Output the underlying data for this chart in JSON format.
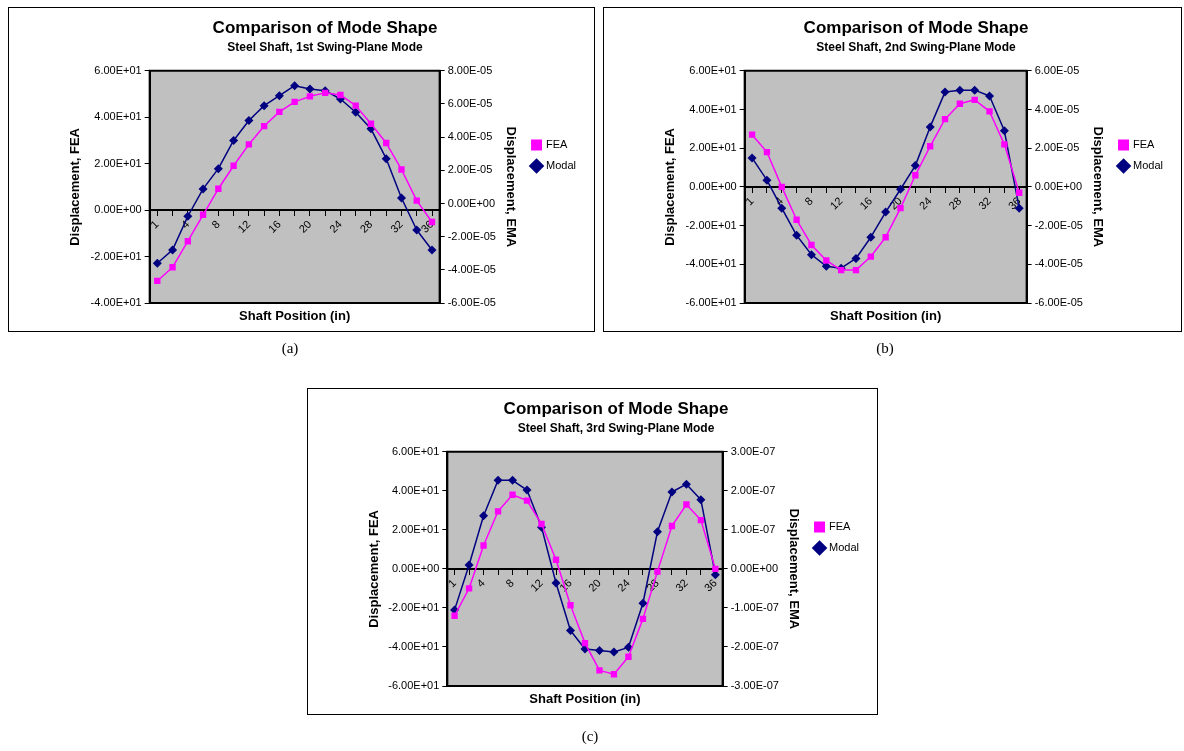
{
  "chart_data": [
    {
      "type": "line",
      "title": "Comparison of Mode Shape",
      "subtitle": "Steel Shaft, 1st Swing-Plane Mode",
      "xlabel": "Shaft Position (in)",
      "ylabel": "Displacement, FEA",
      "y2label": "Displacement, EMA",
      "annotations": [
        "(a)"
      ],
      "legend": "right",
      "grid": false,
      "categories": [
        "1",
        null,
        "4",
        null,
        "8",
        null,
        "12",
        null,
        "16",
        null,
        "20",
        null,
        "24",
        null,
        "28",
        null,
        "32",
        null,
        "36"
      ],
      "series": [
        {
          "name": "FEA",
          "color": "#ff00ff",
          "marker": "square",
          "values": [
            -30.5,
            -24.6,
            -13.4,
            -2,
            9.2,
            19.1,
            28.3,
            36.2,
            42.3,
            46.6,
            49,
            50.5,
            49.6,
            45,
            37.2,
            28.9,
            17.5,
            4.1,
            -5.1
          ]
        },
        {
          "name": "Modal",
          "color": "#000080",
          "marker": "diamond",
          "axis": "y2",
          "values": [
            -3.6e-05,
            -2.8e-05,
            -7.7e-06,
            8.8e-06,
            2.1e-05,
            3.8e-05,
            5e-05,
            5.9e-05,
            6.5e-05,
            7.1e-05,
            6.9e-05,
            6.8e-05,
            6.3e-05,
            5.5e-05,
            4.5e-05,
            2.7e-05,
            3.3e-06,
            -1.6e-05,
            -2.8e-05
          ]
        }
      ],
      "ylim": [
        -40,
        60
      ],
      "yticks": [
        {
          "value": -40,
          "label": "-4.00E+01"
        },
        {
          "value": -20,
          "label": "-2.00E+01"
        },
        {
          "value": 0,
          "label": "0.00E+00"
        },
        {
          "value": 20,
          "label": "2.00E+01"
        },
        {
          "value": 40,
          "label": "4.00E+01"
        },
        {
          "value": 60,
          "label": "6.00E+01"
        }
      ],
      "y2lim": [
        -6e-05,
        8e-05
      ],
      "y2ticks": [
        {
          "value": -6e-05,
          "label": "-6.00E-05"
        },
        {
          "value": -4e-05,
          "label": "-4.00E-05"
        },
        {
          "value": -2e-05,
          "label": "-2.00E-05"
        },
        {
          "value": 0,
          "label": "0.00E+00"
        },
        {
          "value": 2e-05,
          "label": "2.00E-05"
        },
        {
          "value": 4e-05,
          "label": "4.00E-05"
        },
        {
          "value": 6e-05,
          "label": "6.00E-05"
        },
        {
          "value": 8e-05,
          "label": "8.00E-05"
        }
      ]
    },
    {
      "type": "line",
      "title": "Comparison of Mode Shape",
      "subtitle": "Steel Shaft, 2nd Swing-Plane Mode",
      "xlabel": "Shaft Position (in)",
      "ylabel": "Displacement, FEA",
      "y2label": "Displacement, EMA",
      "annotations": [
        "(b)"
      ],
      "legend": "right",
      "grid": false,
      "categories": [
        "1",
        null,
        "4",
        null,
        "8",
        null,
        "12",
        null,
        "16",
        null,
        "20",
        null,
        "24",
        null,
        "28",
        null,
        "32",
        null,
        "36"
      ],
      "series": [
        {
          "name": "FEA",
          "color": "#ff00ff",
          "marker": "square",
          "values": [
            27,
            18,
            0,
            -17,
            -30,
            -38,
            -43,
            -43,
            -36,
            -26,
            -11,
            6,
            21,
            35,
            43,
            45,
            39,
            22,
            -3
          ]
        },
        {
          "name": "Modal",
          "color": "#000080",
          "marker": "diamond",
          "axis": "y2",
          "values": [
            1.5e-05,
            3.5e-06,
            -1.1e-05,
            -2.5e-05,
            -3.5e-05,
            -4.1e-05,
            -4.2e-05,
            -3.7e-05,
            -2.6e-05,
            -1.3e-05,
            -1.2e-06,
            1.1e-05,
            3.1e-05,
            4.9e-05,
            5e-05,
            5e-05,
            4.7e-05,
            2.9e-05,
            -1.1e-05
          ]
        }
      ],
      "ylim": [
        -60,
        60
      ],
      "yticks": [
        {
          "value": -60,
          "label": "-6.00E+01"
        },
        {
          "value": -40,
          "label": "-4.00E+01"
        },
        {
          "value": -20,
          "label": "-2.00E+01"
        },
        {
          "value": 0,
          "label": "0.00E+00"
        },
        {
          "value": 20,
          "label": "2.00E+01"
        },
        {
          "value": 40,
          "label": "4.00E+01"
        },
        {
          "value": 60,
          "label": "6.00E+01"
        }
      ],
      "y2lim": [
        -6e-05,
        6e-05
      ],
      "y2ticks": [
        {
          "value": -6e-05,
          "label": "-6.00E-05"
        },
        {
          "value": -4e-05,
          "label": "-4.00E-05"
        },
        {
          "value": -2e-05,
          "label": "-2.00E-05"
        },
        {
          "value": 0,
          "label": "0.00E+00"
        },
        {
          "value": 2e-05,
          "label": "2.00E-05"
        },
        {
          "value": 4e-05,
          "label": "4.00E-05"
        },
        {
          "value": 6e-05,
          "label": "6.00E-05"
        }
      ]
    },
    {
      "type": "line",
      "title": "Comparison of Mode Shape",
      "subtitle": "Steel Shaft, 3rd Swing-Plane Mode",
      "xlabel": "Shaft Position (in)",
      "ylabel": "Displacement, FEA",
      "y2label": "Displacement, EMA",
      "annotations": [
        "(c)"
      ],
      "legend": "right",
      "grid": false,
      "categories": [
        "1",
        null,
        "4",
        null,
        "8",
        null,
        "12",
        null,
        "16",
        null,
        "20",
        null,
        "24",
        null,
        "28",
        null,
        "32",
        null,
        "36"
      ],
      "series": [
        {
          "name": "FEA",
          "color": "#ff00ff",
          "marker": "square",
          "values": [
            -24,
            -10,
            12,
            29.5,
            38,
            35,
            23,
            4.7,
            -18.6,
            -38,
            -52,
            -54,
            -45,
            -25.6,
            -1.4,
            22,
            33,
            25,
            0
          ]
        },
        {
          "name": "Modal",
          "color": "#000080",
          "marker": "diamond",
          "axis": "y2",
          "values": [
            -1.05e-07,
            1e-08,
            1.36e-07,
            2.27e-07,
            2.27e-07,
            2.02e-07,
            1.07e-07,
            -3.6e-08,
            -1.58e-07,
            -2.05e-07,
            -2.09e-07,
            -2.13e-07,
            -2.01e-07,
            -8.8e-08,
            9.5e-08,
            1.97e-07,
            2.17e-07,
            1.77e-07,
            -1.5e-08
          ]
        }
      ],
      "ylim": [
        -60,
        60
      ],
      "yticks": [
        {
          "value": -60,
          "label": "-6.00E+01"
        },
        {
          "value": -40,
          "label": "-4.00E+01"
        },
        {
          "value": -20,
          "label": "-2.00E+01"
        },
        {
          "value": 0,
          "label": "0.00E+00"
        },
        {
          "value": 20,
          "label": "2.00E+01"
        },
        {
          "value": 40,
          "label": "4.00E+01"
        },
        {
          "value": 60,
          "label": "6.00E+01"
        }
      ],
      "y2lim": [
        -3e-07,
        3e-07
      ],
      "y2ticks": [
        {
          "value": -3e-07,
          "label": "-3.00E-07"
        },
        {
          "value": -2e-07,
          "label": "-2.00E-07"
        },
        {
          "value": -1e-07,
          "label": "-1.00E-07"
        },
        {
          "value": 0,
          "label": "0.00E+00"
        },
        {
          "value": 1e-07,
          "label": "1.00E-07"
        },
        {
          "value": 2e-07,
          "label": "2.00E-07"
        },
        {
          "value": 3e-07,
          "label": "3.00E-07"
        }
      ]
    }
  ]
}
